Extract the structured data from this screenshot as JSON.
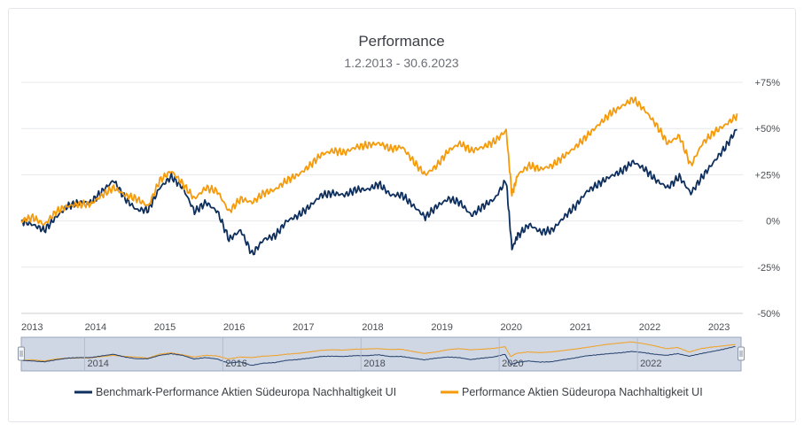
{
  "chart_data": {
    "type": "line",
    "title": "Performance",
    "subtitle": "1.2.2013 - 30.6.2023",
    "y_ticks": [
      "+75%",
      "+50%",
      "+25%",
      "0%",
      "-25%",
      "-50%"
    ],
    "y_tick_values": [
      75,
      50,
      25,
      0,
      -25,
      -50
    ],
    "ylim": [
      -50,
      75
    ],
    "x_ticks": [
      "2013",
      "2014",
      "2015",
      "2016",
      "2017",
      "2018",
      "2019",
      "2020",
      "2021",
      "2022",
      "2023"
    ],
    "navigator_ticks": [
      "2014",
      "2016",
      "2018",
      "2020",
      "2022"
    ],
    "grid": true,
    "legend_position": "bottom",
    "x": [
      "2013-02",
      "2013-04",
      "2013-06",
      "2013-08",
      "2013-10",
      "2013-12",
      "2014-02",
      "2014-04",
      "2014-06",
      "2014-08",
      "2014-10",
      "2014-12",
      "2015-02",
      "2015-04",
      "2015-06",
      "2015-08",
      "2015-10",
      "2015-12",
      "2016-02",
      "2016-04",
      "2016-06",
      "2016-08",
      "2016-10",
      "2016-12",
      "2017-02",
      "2017-04",
      "2017-06",
      "2017-08",
      "2017-10",
      "2017-12",
      "2018-02",
      "2018-04",
      "2018-06",
      "2018-08",
      "2018-10",
      "2018-12",
      "2019-02",
      "2019-04",
      "2019-06",
      "2019-08",
      "2019-10",
      "2019-12",
      "2020-02",
      "2020-03",
      "2020-04",
      "2020-06",
      "2020-08",
      "2020-10",
      "2020-12",
      "2021-02",
      "2021-04",
      "2021-06",
      "2021-08",
      "2021-10",
      "2021-12",
      "2022-02",
      "2022-04",
      "2022-06",
      "2022-08",
      "2022-10",
      "2022-12",
      "2023-02",
      "2023-04",
      "2023-06"
    ],
    "series": [
      {
        "name": "Benchmark-Performance Aktien Südeuropa Nachhaltigkeit UI",
        "color": "#0e2f5e",
        "values": [
          0,
          -2,
          -5,
          2,
          8,
          10,
          10,
          16,
          22,
          12,
          6,
          6,
          18,
          24,
          18,
          5,
          10,
          5,
          -10,
          -5,
          -18,
          -10,
          -8,
          0,
          3,
          8,
          14,
          15,
          14,
          17,
          17,
          20,
          14,
          14,
          8,
          2,
          8,
          12,
          10,
          3,
          8,
          12,
          22,
          -15,
          -8,
          -2,
          -6,
          -5,
          2,
          8,
          16,
          20,
          24,
          27,
          32,
          28,
          22,
          18,
          24,
          15,
          24,
          32,
          40,
          50
        ]
      },
      {
        "name": "Performance Aktien Südeuropa Nachhaltigkeit UI",
        "color": "#f59a0a",
        "values": [
          0,
          2,
          -2,
          5,
          8,
          9,
          9,
          14,
          18,
          14,
          12,
          8,
          22,
          27,
          20,
          12,
          18,
          16,
          5,
          12,
          10,
          15,
          17,
          22,
          25,
          30,
          36,
          38,
          37,
          40,
          41,
          42,
          39,
          40,
          32,
          25,
          30,
          38,
          42,
          38,
          40,
          43,
          49,
          14,
          25,
          30,
          28,
          30,
          35,
          40,
          46,
          52,
          58,
          62,
          66,
          60,
          52,
          42,
          46,
          30,
          42,
          48,
          52,
          57
        ]
      }
    ]
  }
}
